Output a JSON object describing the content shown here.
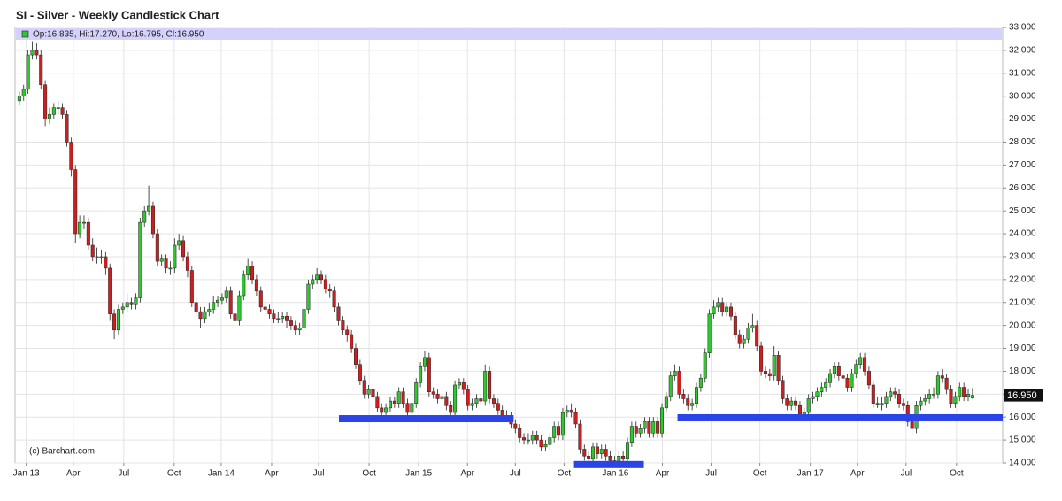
{
  "chart_data": {
    "type": "candlestick",
    "title": "SI - Silver - Weekly Candlestick Chart",
    "legend_text": "Op:16.835, Hi:17.270, Lo:16.795, Cl:16.950",
    "credit": "(c) Barchart.com",
    "last_price": {
      "value": 16.95,
      "label": "16.950"
    },
    "up_color": "#2fc62f",
    "down_color": "#cc1f1f",
    "grid": true,
    "xlim": [
      -1,
      228
    ],
    "xticks": [
      {
        "value": 1.6,
        "label": "Jan 13"
      },
      {
        "value": 12.5,
        "label": "Apr"
      },
      {
        "value": 24.2,
        "label": "Jul"
      },
      {
        "value": 35.9,
        "label": "Oct"
      },
      {
        "value": 46.8,
        "label": "Jan 14"
      },
      {
        "value": 58.5,
        "label": "Apr"
      },
      {
        "value": 69.4,
        "label": "Jul"
      },
      {
        "value": 81.1,
        "label": "Oct"
      },
      {
        "value": 92.6,
        "label": "Jan 15"
      },
      {
        "value": 103.9,
        "label": "Apr"
      },
      {
        "value": 115,
        "label": "Jul"
      },
      {
        "value": 126.3,
        "label": "Oct"
      },
      {
        "value": 138.2,
        "label": "Jan 16"
      },
      {
        "value": 149.1,
        "label": "Apr"
      },
      {
        "value": 160.4,
        "label": "Jul"
      },
      {
        "value": 171.7,
        "label": "Oct"
      },
      {
        "value": 183.4,
        "label": "Jan 17"
      },
      {
        "value": 194.3,
        "label": "Apr"
      },
      {
        "value": 205.6,
        "label": "Jul"
      },
      {
        "value": 217.3,
        "label": "Oct"
      }
    ],
    "ylim": [
      14,
      33
    ],
    "yticks": [
      {
        "value": 14,
        "label": "14.000"
      },
      {
        "value": 15,
        "label": "15.000"
      },
      {
        "value": 16,
        "label": "16.000"
      },
      {
        "value": 17,
        "label": "17.000"
      },
      {
        "value": 18,
        "label": "18.000"
      },
      {
        "value": 19,
        "label": "19.000"
      },
      {
        "value": 20,
        "label": "20.000"
      },
      {
        "value": 21,
        "label": "21.000"
      },
      {
        "value": 22,
        "label": "22.000"
      },
      {
        "value": 23,
        "label": "23.000"
      },
      {
        "value": 24,
        "label": "24.000"
      },
      {
        "value": 25,
        "label": "25.000"
      },
      {
        "value": 26,
        "label": "26.000"
      },
      {
        "value": 27,
        "label": "27.000"
      },
      {
        "value": 28,
        "label": "28.000"
      },
      {
        "value": 29,
        "label": "29.000"
      },
      {
        "value": 30,
        "label": "30.000"
      },
      {
        "value": 31,
        "label": "31.000"
      },
      {
        "value": 32,
        "label": "32.000"
      },
      {
        "value": 33,
        "label": "33.000"
      }
    ],
    "support_lines": [
      {
        "start": 74.1,
        "end": 114.6,
        "value": 15.93,
        "color": "#2b44e8"
      },
      {
        "start": 128.6,
        "end": 144.8,
        "value": 13.93,
        "color": "#2b44e8"
      },
      {
        "start": 152.6,
        "end": 228,
        "value": 15.97,
        "color": "#2b44e8"
      }
    ],
    "open": [
      29.8,
      30.0,
      30.3,
      31.8,
      32.0,
      31.8,
      30.5,
      29.0,
      29.2,
      29.5,
      29.5,
      29.2,
      28.0,
      26.8,
      24.0,
      24.5,
      24.5,
      23.5,
      23.0,
      23.0,
      23.0,
      22.5,
      20.5,
      19.8,
      20.7,
      20.8,
      21.0,
      20.9,
      21.2,
      24.5,
      25.0,
      25.2,
      24.0,
      22.8,
      22.9,
      22.5,
      22.5,
      23.5,
      23.7,
      23.0,
      22.4,
      21.0,
      20.6,
      20.3,
      20.6,
      20.7,
      21.0,
      21.1,
      21.2,
      21.5,
      20.5,
      20.2,
      21.3,
      22.2,
      22.6,
      22.0,
      21.5,
      20.8,
      20.7,
      20.5,
      20.3,
      20.3,
      20.4,
      20.2,
      20.0,
      19.8,
      19.9,
      20.7,
      21.8,
      22.0,
      22.2,
      22.0,
      21.6,
      21.5,
      20.8,
      20.2,
      19.8,
      19.6,
      19.0,
      18.3,
      17.6,
      17.0,
      17.2,
      16.9,
      16.4,
      16.2,
      16.4,
      16.7,
      16.6,
      17.1,
      16.6,
      16.2,
      16.6,
      17.5,
      18.2,
      18.6,
      17.1,
      17.0,
      16.8,
      16.9,
      16.5,
      16.2,
      17.4,
      17.5,
      17.2,
      16.5,
      16.6,
      16.8,
      16.7,
      18.0,
      16.8,
      16.6,
      16.3,
      16.0,
      16.0,
      15.7,
      15.5,
      15.1,
      15.0,
      15.0,
      15.2,
      15.0,
      14.7,
      14.8,
      15.1,
      15.6,
      15.2,
      16.2,
      16.3,
      16.2,
      15.7,
      14.6,
      14.3,
      14.2,
      14.7,
      14.4,
      14.6,
      14.3,
      14.1,
      14.1,
      14.3,
      14.2,
      14.9,
      15.6,
      15.3,
      15.5,
      15.8,
      15.3,
      15.8,
      15.3,
      16.4,
      16.9,
      17.8,
      18.0,
      17.0,
      16.8,
      16.5,
      16.6,
      17.3,
      17.7,
      18.8,
      20.5,
      20.8,
      21.0,
      20.6,
      20.8,
      20.4,
      19.6,
      19.2,
      19.4,
      19.9,
      20.0,
      19.1,
      18.0,
      17.9,
      17.8,
      18.7,
      17.6,
      16.8,
      16.5,
      16.7,
      16.5,
      16.1,
      16.2,
      16.8,
      16.9,
      17.1,
      17.3,
      17.5,
      17.9,
      18.2,
      17.8,
      17.7,
      17.3,
      17.9,
      18.3,
      18.6,
      18.0,
      17.4,
      16.6,
      16.6,
      16.6,
      16.9,
      17.1,
      17.0,
      16.6,
      16.5,
      15.8,
      15.5,
      16.5,
      16.7,
      16.8,
      17.0,
      17.0,
      17.8,
      17.7,
      17.2,
      16.6,
      16.9,
      17.3,
      16.9,
      16.835
    ],
    "high": [
      30.2,
      30.5,
      32.0,
      32.4,
      32.3,
      32.0,
      30.7,
      29.5,
      29.7,
      29.8,
      29.7,
      29.4,
      28.2,
      27.0,
      24.8,
      24.8,
      24.7,
      23.8,
      23.4,
      23.3,
      23.2,
      22.7,
      20.7,
      20.9,
      21.0,
      21.4,
      21.2,
      21.4,
      24.7,
      25.2,
      26.1,
      25.4,
      24.2,
      23.1,
      23.1,
      22.8,
      23.8,
      24.0,
      23.9,
      23.2,
      22.6,
      21.2,
      20.8,
      20.8,
      21.0,
      21.3,
      21.3,
      21.4,
      21.7,
      21.7,
      20.7,
      21.5,
      22.4,
      22.9,
      22.8,
      22.2,
      21.7,
      21.0,
      20.9,
      20.7,
      20.6,
      20.6,
      20.6,
      20.4,
      20.2,
      20.1,
      20.9,
      22.0,
      22.2,
      22.5,
      22.4,
      22.2,
      21.8,
      21.7,
      21.0,
      20.4,
      20.0,
      19.8,
      19.2,
      18.5,
      17.8,
      17.4,
      17.4,
      17.1,
      16.6,
      16.6,
      16.9,
      16.9,
      17.3,
      17.3,
      16.8,
      16.8,
      17.7,
      18.4,
      18.9,
      18.8,
      17.3,
      17.2,
      17.1,
      17.1,
      16.7,
      17.6,
      17.7,
      17.7,
      17.4,
      16.8,
      17.0,
      17.0,
      18.3,
      18.2,
      17.0,
      16.8,
      16.5,
      16.3,
      16.2,
      15.9,
      15.7,
      15.3,
      15.3,
      15.4,
      15.4,
      15.2,
      15.0,
      15.3,
      15.8,
      15.8,
      16.4,
      16.5,
      16.6,
      16.4,
      15.9,
      14.8,
      14.5,
      14.9,
      14.9,
      14.8,
      14.8,
      14.5,
      14.3,
      14.5,
      14.5,
      15.1,
      15.8,
      15.8,
      15.7,
      16.0,
      16.0,
      16.0,
      16.0,
      16.6,
      17.1,
      18.0,
      18.3,
      18.2,
      17.2,
      17.0,
      16.8,
      17.5,
      17.9,
      19.0,
      20.7,
      21.1,
      21.2,
      21.2,
      21.0,
      21.0,
      20.6,
      19.8,
      19.6,
      20.1,
      20.5,
      20.2,
      19.3,
      18.2,
      18.1,
      19.1,
      18.9,
      17.8,
      17.0,
      16.9,
      16.9,
      16.7,
      16.4,
      17.0,
      17.1,
      17.3,
      17.5,
      17.7,
      18.1,
      18.4,
      18.4,
      18.0,
      17.9,
      18.1,
      18.5,
      18.8,
      18.8,
      18.2,
      17.6,
      16.9,
      16.9,
      17.1,
      17.3,
      17.3,
      17.2,
      16.8,
      16.7,
      16.0,
      16.7,
      16.9,
      17.0,
      17.2,
      17.3,
      18.0,
      18.1,
      17.9,
      17.4,
      17.1,
      17.5,
      17.5,
      17.2,
      17.27
    ],
    "low": [
      29.6,
      29.8,
      30.1,
      31.6,
      31.6,
      30.3,
      28.7,
      28.8,
      29.0,
      29.2,
      29.0,
      27.8,
      26.5,
      23.6,
      23.8,
      24.2,
      23.3,
      22.8,
      22.7,
      22.7,
      22.2,
      20.2,
      19.4,
      19.6,
      20.5,
      20.6,
      20.7,
      20.7,
      21.0,
      24.3,
      24.8,
      23.8,
      22.6,
      22.6,
      22.3,
      22.2,
      22.3,
      23.3,
      22.8,
      22.1,
      20.8,
      20.4,
      19.9,
      20.1,
      20.4,
      20.5,
      20.8,
      20.9,
      21.0,
      20.3,
      19.9,
      20.0,
      21.1,
      22.0,
      21.8,
      21.3,
      20.6,
      20.5,
      20.3,
      20.1,
      20.1,
      20.1,
      19.9,
      19.8,
      19.6,
      19.6,
      19.7,
      20.5,
      21.6,
      21.8,
      21.8,
      21.4,
      21.2,
      20.6,
      20.0,
      19.6,
      19.3,
      18.8,
      18.1,
      17.4,
      16.8,
      16.8,
      16.7,
      16.2,
      15.9,
      16.0,
      16.2,
      16.4,
      16.4,
      16.4,
      16.0,
      16.0,
      16.4,
      17.3,
      18.0,
      16.9,
      16.8,
      16.6,
      16.6,
      16.3,
      16.0,
      16.0,
      17.2,
      17.0,
      16.3,
      16.3,
      16.4,
      16.5,
      16.5,
      16.6,
      16.4,
      16.1,
      15.8,
      15.8,
      15.5,
      15.3,
      14.9,
      14.8,
      14.8,
      14.8,
      14.8,
      14.5,
      14.5,
      14.6,
      14.9,
      15.0,
      15.0,
      16.0,
      16.0,
      15.5,
      14.4,
      14.1,
      14.0,
      14.0,
      14.2,
      14.2,
      14.1,
      13.9,
      13.9,
      13.9,
      14.0,
      14.0,
      14.7,
      15.1,
      15.1,
      15.3,
      15.1,
      15.1,
      15.1,
      15.1,
      16.2,
      16.7,
      17.6,
      16.8,
      16.6,
      16.3,
      16.3,
      16.4,
      17.1,
      17.5,
      18.6,
      20.3,
      20.6,
      20.4,
      20.4,
      20.2,
      19.4,
      19.0,
      19.0,
      19.2,
      19.7,
      18.9,
      17.8,
      17.7,
      17.6,
      17.6,
      17.4,
      16.6,
      16.3,
      16.3,
      16.3,
      15.9,
      15.9,
      16.0,
      16.6,
      16.7,
      16.9,
      17.1,
      17.3,
      17.7,
      17.6,
      17.5,
      17.1,
      17.1,
      17.7,
      18.1,
      17.8,
      17.2,
      16.4,
      16.4,
      16.3,
      16.4,
      16.7,
      16.8,
      16.4,
      16.3,
      15.6,
      15.2,
      15.3,
      16.3,
      16.5,
      16.6,
      16.8,
      16.8,
      17.5,
      17.0,
      16.4,
      16.4,
      16.7,
      16.7,
      16.7,
      16.795
    ],
    "close": [
      30.0,
      30.3,
      31.8,
      32.0,
      31.8,
      30.5,
      29.0,
      29.2,
      29.5,
      29.5,
      29.2,
      28.0,
      26.8,
      24.0,
      24.5,
      24.5,
      23.5,
      23.0,
      23.0,
      23.0,
      22.5,
      20.5,
      19.8,
      20.7,
      20.8,
      21.0,
      20.9,
      21.2,
      24.5,
      25.0,
      25.2,
      24.0,
      22.8,
      22.9,
      22.5,
      22.5,
      23.5,
      23.7,
      23.0,
      22.4,
      21.0,
      20.6,
      20.3,
      20.6,
      20.7,
      21.0,
      21.1,
      21.2,
      21.5,
      20.5,
      20.2,
      21.3,
      22.2,
      22.6,
      22.0,
      21.5,
      20.8,
      20.7,
      20.5,
      20.3,
      20.3,
      20.4,
      20.2,
      20.0,
      19.8,
      19.9,
      20.7,
      21.8,
      22.0,
      22.2,
      22.0,
      21.6,
      21.5,
      20.8,
      20.2,
      19.8,
      19.6,
      19.0,
      18.3,
      17.6,
      17.0,
      17.2,
      16.9,
      16.4,
      16.2,
      16.4,
      16.7,
      16.6,
      17.1,
      16.6,
      16.2,
      16.6,
      17.5,
      18.2,
      18.6,
      17.1,
      17.0,
      16.8,
      16.9,
      16.5,
      16.2,
      17.4,
      17.5,
      17.2,
      16.5,
      16.6,
      16.8,
      16.7,
      18.0,
      16.8,
      16.6,
      16.3,
      16.0,
      16.0,
      15.7,
      15.5,
      15.1,
      15.0,
      15.0,
      15.2,
      15.0,
      14.7,
      14.8,
      15.1,
      15.6,
      15.2,
      16.2,
      16.3,
      16.2,
      15.7,
      14.6,
      14.3,
      14.2,
      14.7,
      14.4,
      14.6,
      14.3,
      14.1,
      14.1,
      14.3,
      14.2,
      14.9,
      15.6,
      15.3,
      15.5,
      15.8,
      15.3,
      15.8,
      15.3,
      16.4,
      16.9,
      17.8,
      18.0,
      17.0,
      16.8,
      16.5,
      16.6,
      17.3,
      17.7,
      18.8,
      20.5,
      20.8,
      21.0,
      20.6,
      20.8,
      20.4,
      19.6,
      19.2,
      19.4,
      19.9,
      20.0,
      19.1,
      18.0,
      17.9,
      17.8,
      18.7,
      17.6,
      16.8,
      16.5,
      16.7,
      16.5,
      16.1,
      16.2,
      16.8,
      16.9,
      17.1,
      17.3,
      17.5,
      17.9,
      18.2,
      17.8,
      17.7,
      17.3,
      17.9,
      18.3,
      18.6,
      18.0,
      17.4,
      16.6,
      16.6,
      16.6,
      16.9,
      17.1,
      17.0,
      16.6,
      16.5,
      15.8,
      15.5,
      16.5,
      16.7,
      16.8,
      17.0,
      17.0,
      17.8,
      17.7,
      17.2,
      16.6,
      16.9,
      17.3,
      16.9,
      17.0,
      16.95
    ]
  }
}
